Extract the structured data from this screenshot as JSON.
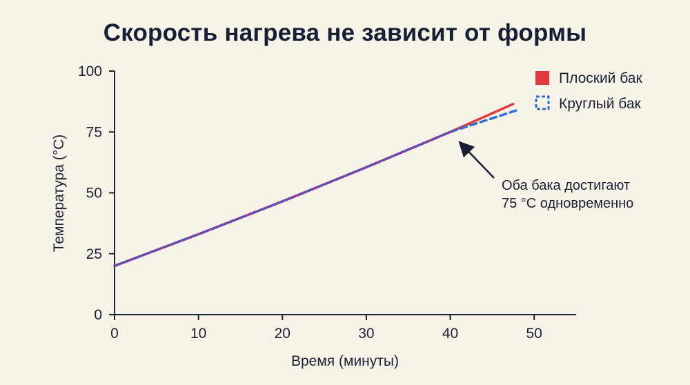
{
  "chart_data": {
    "type": "line",
    "title": "Скорость нагрева не зависит от формы",
    "xlabel": "Время (минуты)",
    "ylabel": "Температура (°C)",
    "xlim": [
      0,
      55
    ],
    "ylim": [
      0,
      100
    ],
    "xticks": [
      0,
      10,
      20,
      30,
      40,
      50
    ],
    "yticks": [
      0,
      25,
      50,
      75,
      100
    ],
    "xtick_labels": [
      "0",
      "10",
      "20",
      "30",
      "40",
      "50"
    ],
    "ytick_labels": [
      "0",
      "25",
      "50",
      "75",
      "100"
    ],
    "grid": false,
    "legend_position": "top-right",
    "series": [
      {
        "name": "Плоский бак",
        "color": "#e23a3a",
        "style": "solid",
        "x": [
          0,
          10,
          20,
          30,
          40,
          47.5
        ],
        "y": [
          20,
          33,
          46.5,
          60.5,
          75,
          86.5
        ]
      },
      {
        "name": "Круглый бак",
        "color": "#2f6fd6",
        "style": "dashed",
        "x": [
          0,
          10,
          20,
          30,
          40,
          48
        ],
        "y": [
          20,
          33,
          46.5,
          60.5,
          75,
          84
        ]
      }
    ],
    "annotation": {
      "lines": [
        "Оба бака достигают",
        "75 °C одновременно"
      ],
      "point": [
        41,
        75
      ]
    },
    "overlap_color": "#7a3fa6"
  }
}
